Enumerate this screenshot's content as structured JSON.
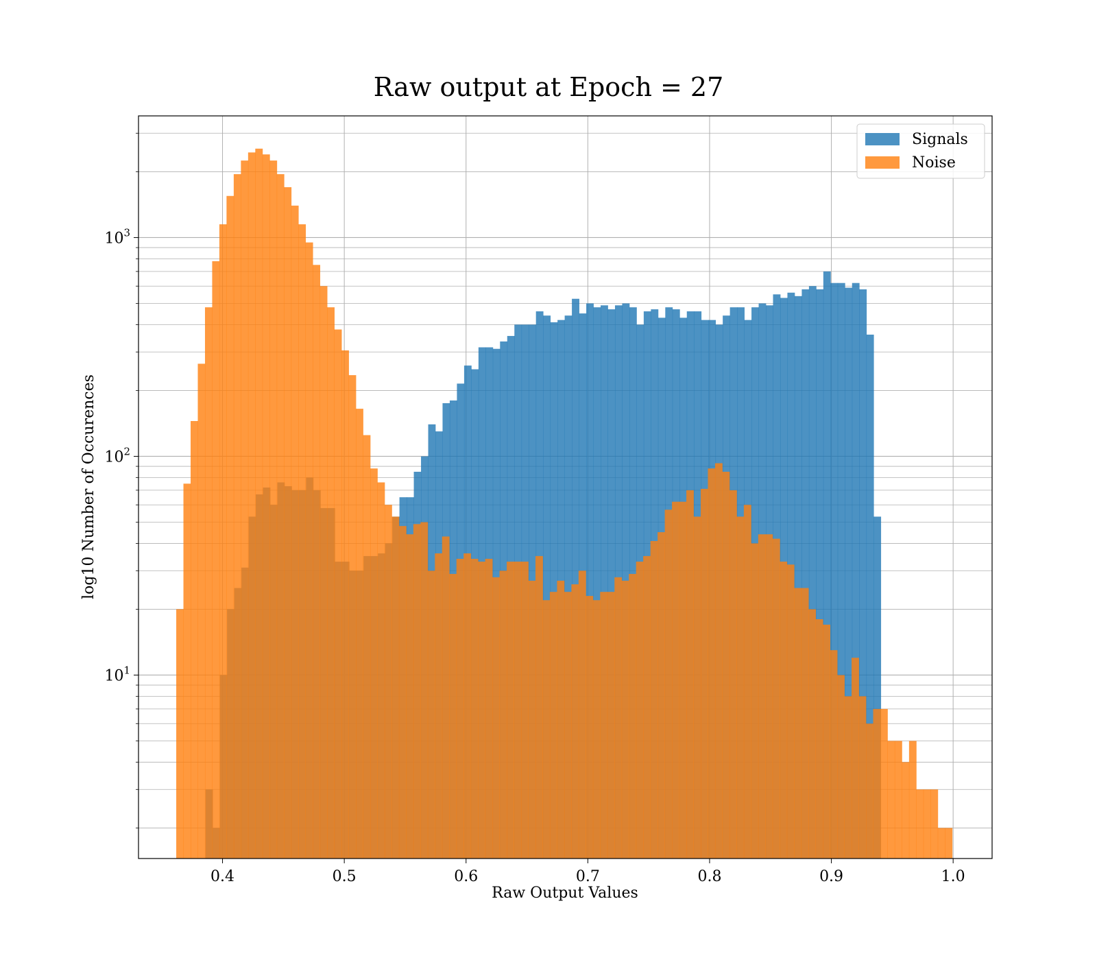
{
  "chart_data": {
    "type": "bar",
    "title": "Raw output at Epoch = 27",
    "xlabel": "Raw Output Values",
    "ylabel": "log10 Number of Occurences",
    "xlim": [
      0.331,
      1.032
    ],
    "ylim": [
      1.45,
      3600
    ],
    "yscale": "log",
    "grid": true,
    "legend": "top-right",
    "xticks": [
      0.4,
      0.5,
      0.6,
      0.7,
      0.8,
      0.9,
      1.0
    ],
    "xtick_labels": [
      "0.4",
      "0.5",
      "0.6",
      "0.7",
      "0.8",
      "0.9",
      "1.0"
    ],
    "yticks": [
      {
        "value": 10,
        "base": "10",
        "exp": "1"
      },
      {
        "value": 100,
        "base": "10",
        "exp": "2"
      },
      {
        "value": 1000,
        "base": "10",
        "exp": "3"
      }
    ],
    "series": [
      {
        "name": "Signals",
        "color": "#1f77b4",
        "opacity": 0.8,
        "bin_start": 0.386,
        "bin_width": 0.0059,
        "values": [
          3,
          2,
          10,
          20,
          25,
          31,
          53,
          67,
          72,
          60,
          76,
          73,
          70,
          70,
          80,
          70,
          58,
          58,
          33,
          33,
          30,
          30,
          35,
          35,
          36,
          40,
          53,
          65,
          65,
          85,
          100,
          140,
          130,
          175,
          180,
          215,
          260,
          250,
          315,
          315,
          310,
          335,
          355,
          400,
          400,
          400,
          460,
          440,
          410,
          420,
          440,
          525,
          450,
          500,
          480,
          490,
          470,
          490,
          500,
          480,
          400,
          460,
          470,
          430,
          480,
          470,
          430,
          460,
          460,
          420,
          420,
          400,
          440,
          480,
          480,
          420,
          480,
          500,
          490,
          550,
          530,
          560,
          540,
          580,
          600,
          580,
          700,
          620,
          620,
          590,
          620,
          580,
          360,
          53
        ]
      },
      {
        "name": "Noise",
        "color": "#ff7f0e",
        "opacity": 0.8,
        "bin_start": 0.362,
        "bin_width": 0.0059,
        "values": [
          20,
          75,
          145,
          265,
          480,
          780,
          1150,
          1550,
          1950,
          2250,
          2450,
          2550,
          2400,
          2250,
          1950,
          1700,
          1400,
          1150,
          950,
          750,
          600,
          480,
          380,
          305,
          235,
          165,
          125,
          88,
          76,
          60,
          53,
          48,
          44,
          49,
          50,
          30,
          36,
          43,
          29,
          34,
          36,
          34,
          33,
          34,
          28,
          30,
          33,
          33,
          33,
          27,
          35,
          22,
          24,
          27,
          24,
          26,
          30,
          23,
          22,
          24,
          24,
          28,
          27,
          29,
          33,
          35,
          41,
          45,
          57,
          62,
          62,
          70,
          53,
          71,
          88,
          93,
          85,
          70,
          53,
          60,
          40,
          44,
          44,
          42,
          33,
          32,
          25,
          25,
          20,
          18,
          17,
          13,
          10,
          8,
          12,
          8,
          6,
          7,
          7,
          5,
          5,
          4,
          5,
          3,
          3,
          3,
          2,
          2
        ]
      }
    ]
  }
}
